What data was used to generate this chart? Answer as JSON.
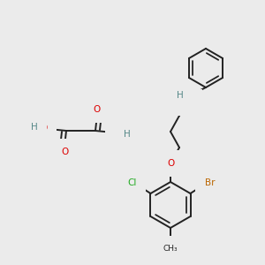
{
  "bg_color": "#ebebeb",
  "bond_color": "#222222",
  "bond_lw": 1.4,
  "atom_colors": {
    "O": "#dd0000",
    "N": "#0000cc",
    "Cl": "#22aa22",
    "Br": "#bb6600",
    "H": "#558888",
    "C": "#222222"
  },
  "font_size": 7.5,
  "font_size_small": 6.5
}
